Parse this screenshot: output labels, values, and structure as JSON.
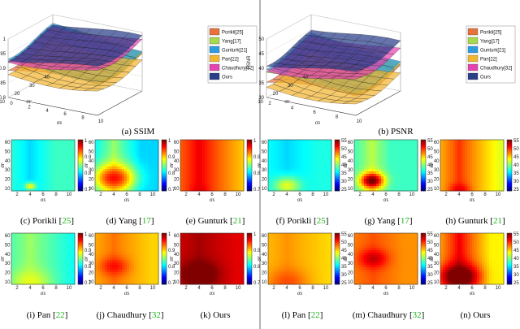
{
  "chart_data": [
    {
      "type": "surface3d",
      "id": "a",
      "caption": "(a) SSIM",
      "zlabel": "SSIM",
      "xlabel": "σs",
      "ylabel": "σr",
      "xticks": [
        "0",
        "2",
        "4",
        "6",
        "8",
        "10"
      ],
      "yticks": [
        "10",
        "20",
        "30",
        "40"
      ],
      "zticks": [
        "0.8",
        "0.85",
        "0.9",
        "0.95",
        "1"
      ],
      "legend": [
        "Porikli[25]",
        "Yang[17]",
        "Gunturk[21]",
        "Pan[22]",
        "Chaudhury[32]",
        "Ours"
      ],
      "colors": [
        "#e7723c",
        "#a7d94f",
        "#2d9de0",
        "#f2b630",
        "#e444b0",
        "#2a3f8a"
      ],
      "zlim": [
        0.75,
        1.0
      ],
      "series_levels": [
        0.9,
        0.92,
        0.93,
        0.88,
        0.95,
        0.96
      ]
    },
    {
      "type": "surface3d",
      "id": "b",
      "caption": "(b) PSNR",
      "zlabel": "PSNR",
      "xlabel": "σs",
      "ylabel": "σr",
      "xticks": [
        "2",
        "4",
        "6",
        "8",
        "10"
      ],
      "yticks": [
        "10",
        "20",
        "30",
        "40"
      ],
      "zticks": [
        "30",
        "35",
        "40",
        "45",
        "50"
      ],
      "legend": [
        "Porikli[25]",
        "Yang[17]",
        "Gunturk[21]",
        "Pan[22]",
        "Chaudhury[32]",
        "Ours"
      ],
      "colors": [
        "#e7723c",
        "#a7d94f",
        "#2d9de0",
        "#f2b630",
        "#e444b0",
        "#2a3f8a"
      ],
      "zlim": [
        30,
        50
      ],
      "series_levels": [
        38,
        40,
        41,
        36,
        43,
        45
      ]
    },
    {
      "type": "heatmap",
      "id": "c",
      "metric": "SSIM",
      "method": "Porikli",
      "cite": "25",
      "vmin": 0.7,
      "vmax": 1.0,
      "cbar_ticks": [
        "1",
        "0.9",
        "0.8",
        "0.7"
      ],
      "params": [
        0.83,
        0.8,
        0.89,
        0.3,
        0.09,
        0.06,
        0.4
      ]
    },
    {
      "type": "heatmap",
      "id": "d",
      "metric": "SSIM",
      "method": "Yang",
      "cite": "17",
      "vmin": 0.7,
      "vmax": 1.0,
      "cbar_ticks": [
        "1",
        "0.9",
        "0.8",
        "0.7"
      ],
      "params": [
        0.8,
        0.86,
        0.96,
        0.3,
        0.25,
        0.22,
        0.42
      ]
    },
    {
      "type": "heatmap",
      "id": "e",
      "metric": "SSIM",
      "method": "Gunturk",
      "cite": "21",
      "vmin": 0.7,
      "vmax": 1.0,
      "cbar_ticks": [
        "1",
        "0.9",
        "0.8",
        "0.7"
      ],
      "params": [
        0.88,
        0.97,
        0.97,
        0.3,
        0.02,
        0.08,
        1.0
      ]
    },
    {
      "type": "heatmap",
      "id": "f",
      "metric": "PSNR",
      "method": "Porikli",
      "cite": "25",
      "vmin": 25,
      "vmax": 55,
      "cbar_ticks": [
        "55",
        "50",
        "45",
        "40",
        "35",
        "30",
        "25"
      ],
      "params": [
        37,
        35,
        43,
        0.3,
        0.1,
        0.15,
        0.5
      ]
    },
    {
      "type": "heatmap",
      "id": "g",
      "metric": "PSNR",
      "method": "Yang",
      "cite": "17",
      "vmin": 25,
      "vmax": 55,
      "cbar_ticks": [
        "55",
        "50",
        "45",
        "40",
        "35",
        "30",
        "25"
      ],
      "params": [
        38,
        42,
        56,
        0.28,
        0.2,
        0.13,
        0.3
      ]
    },
    {
      "type": "heatmap",
      "id": "h",
      "metric": "PSNR",
      "method": "Gunturk",
      "cite": "21",
      "vmin": 25,
      "vmax": 55,
      "cbar_ticks": [
        "55",
        "50",
        "45",
        "40",
        "35",
        "30",
        "25"
      ],
      "params": [
        40,
        50,
        52,
        0.3,
        0.02,
        0.1,
        1.0
      ]
    },
    {
      "type": "heatmap",
      "id": "i",
      "metric": "SSIM",
      "method": "Pan",
      "cite": "22",
      "vmin": 0.7,
      "vmax": 1.0,
      "cbar_ticks": [
        "1",
        "0.9",
        "0.8",
        "0.7"
      ],
      "params": [
        0.8,
        0.86,
        0.88,
        0.3,
        0.05,
        0.2,
        1.0
      ]
    },
    {
      "type": "heatmap",
      "id": "j",
      "metric": "SSIM",
      "method": "Chaudhury",
      "cite": "32",
      "vmin": 0.7,
      "vmax": 1.0,
      "cbar_ticks": [
        "1",
        "0.9",
        "0.8",
        "0.7"
      ],
      "params": [
        0.9,
        0.93,
        0.96,
        0.3,
        0.35,
        0.15,
        0.6
      ]
    },
    {
      "type": "heatmap",
      "id": "k",
      "metric": "SSIM",
      "method": "Ours",
      "cite": "",
      "vmin": 0.7,
      "vmax": 1.0,
      "cbar_ticks": [
        "1",
        "0.9",
        "0.8",
        "0.7"
      ],
      "params": [
        0.97,
        0.99,
        1.02,
        0.3,
        0.2,
        0.2,
        0.6
      ]
    },
    {
      "type": "heatmap",
      "id": "l",
      "metric": "PSNR",
      "method": "Pan",
      "cite": "22",
      "vmin": 25,
      "vmax": 55,
      "cbar_ticks": [
        "55",
        "50",
        "45",
        "40",
        "35",
        "30",
        "25"
      ],
      "params": [
        44,
        47,
        49,
        0.3,
        0.05,
        0.2,
        1.0
      ]
    },
    {
      "type": "heatmap",
      "id": "m",
      "metric": "PSNR",
      "method": "Chaudhury",
      "cite": "32",
      "vmin": 25,
      "vmax": 55,
      "cbar_ticks": [
        "55",
        "50",
        "45",
        "40",
        "35",
        "30",
        "25"
      ],
      "params": [
        47,
        49,
        53,
        0.3,
        0.5,
        0.15,
        0.5
      ]
    },
    {
      "type": "heatmap",
      "id": "n",
      "metric": "PSNR",
      "method": "Ours",
      "cite": "",
      "vmin": 25,
      "vmax": 55,
      "cbar_ticks": [
        "55",
        "50",
        "45",
        "40",
        "35",
        "30",
        "25"
      ],
      "params": [
        44,
        52,
        58,
        0.3,
        0.15,
        0.2,
        0.5
      ]
    }
  ],
  "heatmap_axes": {
    "xticks": [
      "2",
      "4",
      "6",
      "8",
      "10"
    ],
    "yticks": [
      "10",
      "20",
      "30",
      "40",
      "50",
      "60"
    ],
    "xlabel": "σs",
    "ylabel": "σr"
  },
  "captions": {
    "a": "(a) SSIM",
    "b": "(b) PSNR",
    "c": {
      "pre": "(c) Porikli [",
      "cite": "25",
      "post": "]"
    },
    "d": {
      "pre": "(d) Yang [",
      "cite": "17",
      "post": "]"
    },
    "e": {
      "pre": "(e) Gunturk [",
      "cite": "21",
      "post": "]"
    },
    "f": {
      "pre": "(f) Porikli [",
      "cite": "25",
      "post": "]"
    },
    "g": {
      "pre": "(g) Yang [",
      "cite": "17",
      "post": "]"
    },
    "h": {
      "pre": "(h) Gunturk [",
      "cite": "21",
      "post": "]"
    },
    "i": {
      "pre": "(i) Pan [",
      "cite": "22",
      "post": "]"
    },
    "j": {
      "pre": "(j) Chaudhury [",
      "cite": "32",
      "post": "]"
    },
    "k": "(k) Ours",
    "l": {
      "pre": "(l) Pan [",
      "cite": "22",
      "post": "]"
    },
    "m": {
      "pre": "(m) Chaudhury [",
      "cite": "32",
      "post": "]"
    },
    "n": "(n) Ours"
  }
}
